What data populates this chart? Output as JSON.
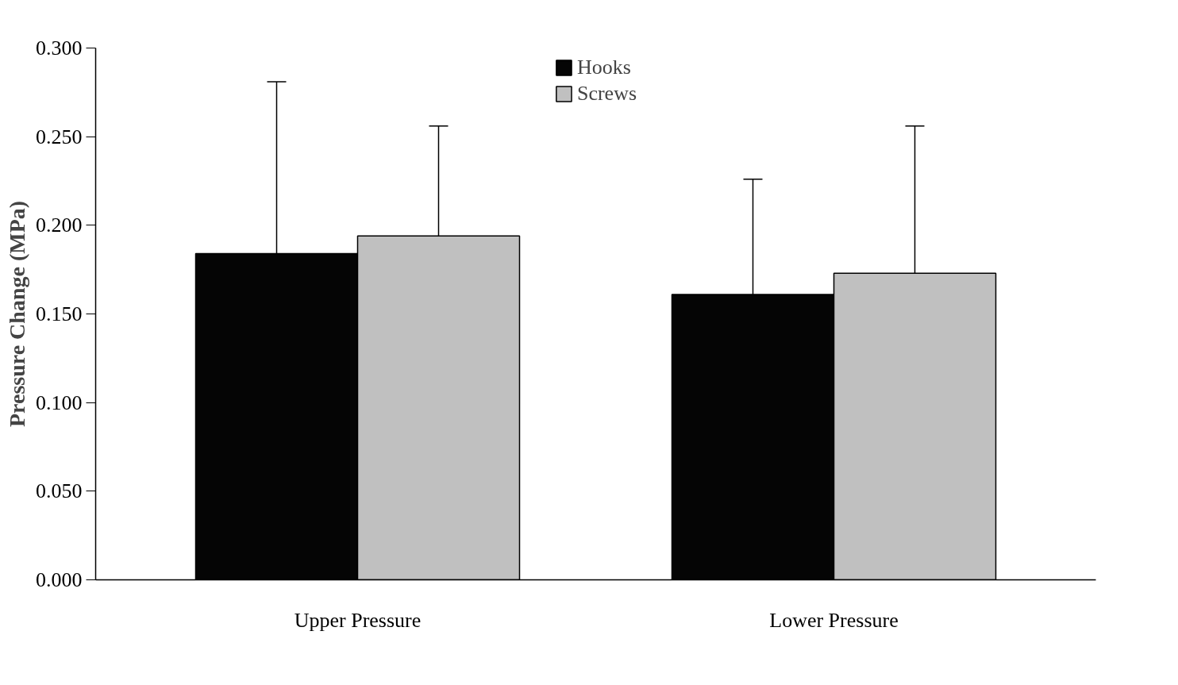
{
  "chart_data": {
    "type": "bar",
    "ylabel": "Pressure Change (MPa)",
    "categories": [
      "Upper Pressure",
      "Lower Pressure"
    ],
    "series": [
      {
        "name": "Hooks",
        "color": "#050505",
        "values": [
          0.184,
          0.161
        ],
        "errors": [
          [
            0.184,
            0.281
          ],
          [
            0.161,
            0.226
          ]
        ]
      },
      {
        "name": "Screws",
        "color": "#c0c0c0",
        "values": [
          0.194,
          0.173
        ],
        "errors": [
          [
            0.194,
            0.256
          ],
          [
            0.173,
            0.256
          ]
        ]
      }
    ],
    "ylim": [
      0,
      0.3
    ],
    "yticks": [
      {
        "value": 0,
        "label": "0.000"
      },
      {
        "value": 0.05,
        "label": "0.050"
      },
      {
        "value": 0.1,
        "label": "0.100"
      },
      {
        "value": 0.15,
        "label": "0.150"
      },
      {
        "value": 0.2,
        "label": "0.200"
      },
      {
        "value": 0.25,
        "label": "0.250"
      },
      {
        "value": 0.3,
        "label": "0.300"
      }
    ],
    "legend": "top",
    "grid": false
  }
}
